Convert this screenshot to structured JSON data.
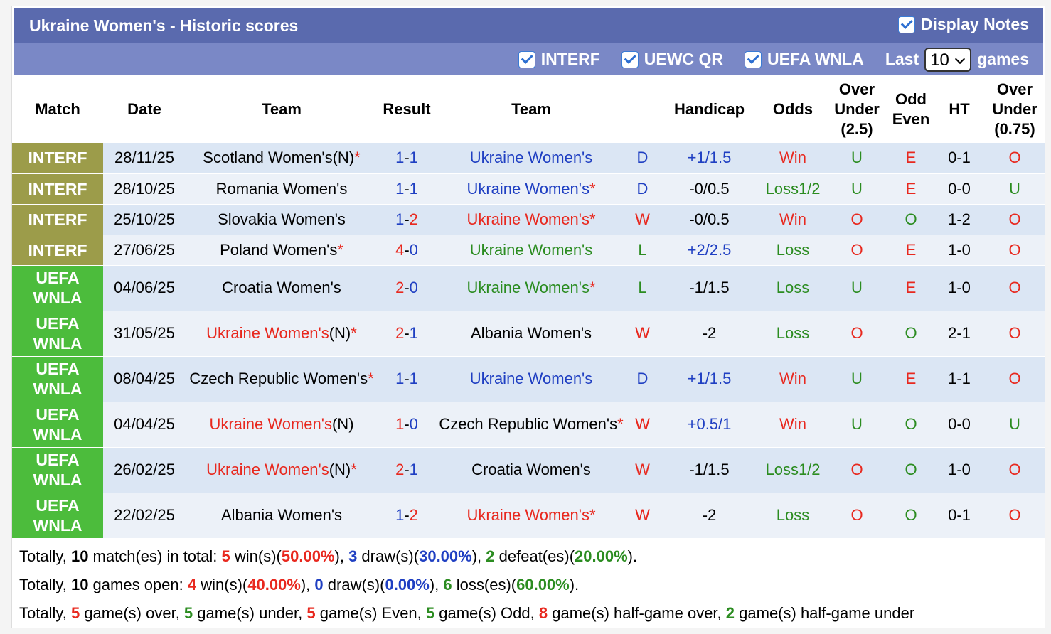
{
  "header": {
    "title": "Ukraine Women's - Historic scores",
    "display_notes": "Display Notes",
    "filters": [
      "INTERF",
      "UEWC QR",
      "UEFA WNLA"
    ],
    "last": "Last",
    "last_value": "10",
    "games": "games"
  },
  "table": {
    "columns": [
      "Match",
      "Date",
      "Team",
      "Result",
      "Team",
      "",
      "Handicap",
      "Odds",
      "Over Under (2.5)",
      "Odd Even",
      "HT",
      "Over Under (0.75)"
    ],
    "rows": [
      {
        "match": {
          "text": "INTERF",
          "color": "#9c9c4a"
        },
        "date": "28/11/25",
        "team1": {
          "name": "Scotland Women's",
          "color": "black",
          "neutral": "(N)",
          "star": "*"
        },
        "result": {
          "home": "1",
          "sep": "-",
          "away": "1",
          "home_color": "blue",
          "away_color": "blue"
        },
        "team2": {
          "name": "Ukraine Women's",
          "color": "blue"
        },
        "outcome": {
          "text": "D",
          "color": "blue"
        },
        "handicap": {
          "text": "+1/1.5",
          "color": "blue"
        },
        "odds": {
          "text": "Win",
          "color": "red"
        },
        "ou": {
          "text": "U",
          "color": "green"
        },
        "oe": {
          "text": "E",
          "color": "red"
        },
        "ht": {
          "text": "0-1",
          "color": "black"
        },
        "ou2": {
          "text": "O",
          "color": "red"
        }
      },
      {
        "match": {
          "text": "INTERF",
          "color": "#9c9c4a"
        },
        "date": "28/10/25",
        "team1": {
          "name": "Romania Women's",
          "color": "black"
        },
        "result": {
          "home": "1",
          "sep": "-",
          "away": "1",
          "home_color": "blue",
          "away_color": "blue"
        },
        "team2": {
          "name": "Ukraine Women's",
          "color": "blue",
          "star": "*"
        },
        "outcome": {
          "text": "D",
          "color": "blue"
        },
        "handicap": {
          "text": "-0/0.5",
          "color": "black"
        },
        "odds": {
          "text": "Loss1/2",
          "color": "green"
        },
        "ou": {
          "text": "U",
          "color": "green"
        },
        "oe": {
          "text": "E",
          "color": "red"
        },
        "ht": {
          "text": "0-0",
          "color": "black"
        },
        "ou2": {
          "text": "U",
          "color": "green"
        }
      },
      {
        "match": {
          "text": "INTERF",
          "color": "#9c9c4a"
        },
        "date": "25/10/25",
        "team1": {
          "name": "Slovakia Women's",
          "color": "black"
        },
        "result": {
          "home": "1",
          "sep": "-",
          "away": "2",
          "home_color": "blue",
          "away_color": "red"
        },
        "team2": {
          "name": "Ukraine Women's",
          "color": "red",
          "star": "*"
        },
        "outcome": {
          "text": "W",
          "color": "red"
        },
        "handicap": {
          "text": "-0/0.5",
          "color": "black"
        },
        "odds": {
          "text": "Win",
          "color": "red"
        },
        "ou": {
          "text": "O",
          "color": "red"
        },
        "oe": {
          "text": "O",
          "color": "green"
        },
        "ht": {
          "text": "1-2",
          "color": "black"
        },
        "ou2": {
          "text": "O",
          "color": "red"
        }
      },
      {
        "match": {
          "text": "INTERF",
          "color": "#9c9c4a"
        },
        "date": "27/06/25",
        "team1": {
          "name": "Poland Women's",
          "color": "black",
          "star": "*"
        },
        "result": {
          "home": "4",
          "sep": "-",
          "away": "0",
          "home_color": "red",
          "away_color": "blue"
        },
        "team2": {
          "name": "Ukraine Women's",
          "color": "green"
        },
        "outcome": {
          "text": "L",
          "color": "green"
        },
        "handicap": {
          "text": "+2/2.5",
          "color": "blue"
        },
        "odds": {
          "text": "Loss",
          "color": "green"
        },
        "ou": {
          "text": "O",
          "color": "red"
        },
        "oe": {
          "text": "E",
          "color": "red"
        },
        "ht": {
          "text": "1-0",
          "color": "black"
        },
        "ou2": {
          "text": "O",
          "color": "red"
        }
      },
      {
        "match": {
          "text": "UEFA WNLA",
          "color": "#4cbc3c"
        },
        "date": "04/06/25",
        "team1": {
          "name": "Croatia Women's",
          "color": "black"
        },
        "result": {
          "home": "2",
          "sep": "-",
          "away": "0",
          "home_color": "red",
          "away_color": "blue"
        },
        "team2": {
          "name": "Ukraine Women's",
          "color": "green",
          "star": "*"
        },
        "outcome": {
          "text": "L",
          "color": "green"
        },
        "handicap": {
          "text": "-1/1.5",
          "color": "black"
        },
        "odds": {
          "text": "Loss",
          "color": "green"
        },
        "ou": {
          "text": "U",
          "color": "green"
        },
        "oe": {
          "text": "E",
          "color": "red"
        },
        "ht": {
          "text": "1-0",
          "color": "black"
        },
        "ou2": {
          "text": "O",
          "color": "red"
        }
      },
      {
        "match": {
          "text": "UEFA WNLA",
          "color": "#4cbc3c"
        },
        "date": "31/05/25",
        "team1": {
          "name": "Ukraine Women's",
          "color": "red",
          "neutral": "(N)",
          "star": "*"
        },
        "result": {
          "home": "2",
          "sep": "-",
          "away": "1",
          "home_color": "red",
          "away_color": "blue"
        },
        "team2": {
          "name": "Albania Women's",
          "color": "black"
        },
        "outcome": {
          "text": "W",
          "color": "red"
        },
        "handicap": {
          "text": "-2",
          "color": "black"
        },
        "odds": {
          "text": "Loss",
          "color": "green"
        },
        "ou": {
          "text": "O",
          "color": "red"
        },
        "oe": {
          "text": "O",
          "color": "green"
        },
        "ht": {
          "text": "2-1",
          "color": "black"
        },
        "ou2": {
          "text": "O",
          "color": "red"
        }
      },
      {
        "match": {
          "text": "UEFA WNLA",
          "color": "#4cbc3c"
        },
        "date": "08/04/25",
        "team1": {
          "name": "Czech Republic Women's",
          "color": "black",
          "star": "*"
        },
        "result": {
          "home": "1",
          "sep": "-",
          "away": "1",
          "home_color": "blue",
          "away_color": "blue"
        },
        "team2": {
          "name": "Ukraine Women's",
          "color": "blue"
        },
        "outcome": {
          "text": "D",
          "color": "blue"
        },
        "handicap": {
          "text": "+1/1.5",
          "color": "blue"
        },
        "odds": {
          "text": "Win",
          "color": "red"
        },
        "ou": {
          "text": "U",
          "color": "green"
        },
        "oe": {
          "text": "E",
          "color": "red"
        },
        "ht": {
          "text": "1-1",
          "color": "black"
        },
        "ou2": {
          "text": "O",
          "color": "red"
        }
      },
      {
        "match": {
          "text": "UEFA WNLA",
          "color": "#4cbc3c"
        },
        "date": "04/04/25",
        "team1": {
          "name": "Ukraine Women's",
          "color": "red",
          "neutral": "(N)"
        },
        "result": {
          "home": "1",
          "sep": "-",
          "away": "0",
          "home_color": "red",
          "away_color": "blue"
        },
        "team2": {
          "name": "Czech Republic Women's",
          "color": "black",
          "star": "*"
        },
        "outcome": {
          "text": "W",
          "color": "red"
        },
        "handicap": {
          "text": "+0.5/1",
          "color": "blue"
        },
        "odds": {
          "text": "Win",
          "color": "red"
        },
        "ou": {
          "text": "U",
          "color": "green"
        },
        "oe": {
          "text": "O",
          "color": "green"
        },
        "ht": {
          "text": "0-0",
          "color": "black"
        },
        "ou2": {
          "text": "U",
          "color": "green"
        }
      },
      {
        "match": {
          "text": "UEFA WNLA",
          "color": "#4cbc3c"
        },
        "date": "26/02/25",
        "team1": {
          "name": "Ukraine Women's",
          "color": "red",
          "neutral": "(N)",
          "star": "*"
        },
        "result": {
          "home": "2",
          "sep": "-",
          "away": "1",
          "home_color": "red",
          "away_color": "blue"
        },
        "team2": {
          "name": "Croatia Women's",
          "color": "black"
        },
        "outcome": {
          "text": "W",
          "color": "red"
        },
        "handicap": {
          "text": "-1/1.5",
          "color": "black"
        },
        "odds": {
          "text": "Loss1/2",
          "color": "green"
        },
        "ou": {
          "text": "O",
          "color": "red"
        },
        "oe": {
          "text": "O",
          "color": "green"
        },
        "ht": {
          "text": "1-0",
          "color": "black"
        },
        "ou2": {
          "text": "O",
          "color": "red"
        }
      },
      {
        "match": {
          "text": "UEFA WNLA",
          "color": "#4cbc3c"
        },
        "date": "22/02/25",
        "team1": {
          "name": "Albania Women's",
          "color": "black"
        },
        "result": {
          "home": "1",
          "sep": "-",
          "away": "2",
          "home_color": "blue",
          "away_color": "red"
        },
        "team2": {
          "name": "Ukraine Women's",
          "color": "red",
          "star": "*"
        },
        "outcome": {
          "text": "W",
          "color": "red"
        },
        "handicap": {
          "text": "-2",
          "color": "black"
        },
        "odds": {
          "text": "Loss",
          "color": "green"
        },
        "ou": {
          "text": "O",
          "color": "red"
        },
        "oe": {
          "text": "O",
          "color": "green"
        },
        "ht": {
          "text": "0-1",
          "color": "black"
        },
        "ou2": {
          "text": "O",
          "color": "red"
        }
      }
    ]
  },
  "summary": [
    [
      {
        "text": "Totally, "
      },
      {
        "text": "10",
        "bold": true
      },
      {
        "text": " match(es) in total: "
      },
      {
        "text": "5",
        "bold": true,
        "color": "red"
      },
      {
        "text": " win(s)("
      },
      {
        "text": "50.00%",
        "bold": true,
        "color": "red"
      },
      {
        "text": "), "
      },
      {
        "text": "3",
        "bold": true,
        "color": "blue"
      },
      {
        "text": " draw(s)("
      },
      {
        "text": "30.00%",
        "bold": true,
        "color": "blue"
      },
      {
        "text": "), "
      },
      {
        "text": "2",
        "bold": true,
        "color": "green"
      },
      {
        "text": " defeat(es)("
      },
      {
        "text": "20.00%",
        "bold": true,
        "color": "green"
      },
      {
        "text": ")."
      }
    ],
    [
      {
        "text": "Totally, "
      },
      {
        "text": "10",
        "bold": true
      },
      {
        "text": " games open: "
      },
      {
        "text": "4",
        "bold": true,
        "color": "red"
      },
      {
        "text": " win(s)("
      },
      {
        "text": "40.00%",
        "bold": true,
        "color": "red"
      },
      {
        "text": "), "
      },
      {
        "text": "0",
        "bold": true,
        "color": "blue"
      },
      {
        "text": " draw(s)("
      },
      {
        "text": "0.00%",
        "bold": true,
        "color": "blue"
      },
      {
        "text": "), "
      },
      {
        "text": "6",
        "bold": true,
        "color": "green"
      },
      {
        "text": " loss(es)("
      },
      {
        "text": "60.00%",
        "bold": true,
        "color": "green"
      },
      {
        "text": ")."
      }
    ],
    [
      {
        "text": "Totally, "
      },
      {
        "text": "5",
        "bold": true,
        "color": "red"
      },
      {
        "text": " game(s) over, "
      },
      {
        "text": "5",
        "bold": true,
        "color": "green"
      },
      {
        "text": " game(s) under, "
      },
      {
        "text": "5",
        "bold": true,
        "color": "red"
      },
      {
        "text": " game(s) Even, "
      },
      {
        "text": "5",
        "bold": true,
        "color": "green"
      },
      {
        "text": " game(s) Odd, "
      },
      {
        "text": "8",
        "bold": true,
        "color": "red"
      },
      {
        "text": " game(s) half-game over, "
      },
      {
        "text": "2",
        "bold": true,
        "color": "green"
      },
      {
        "text": " game(s) half-game under"
      }
    ]
  ]
}
